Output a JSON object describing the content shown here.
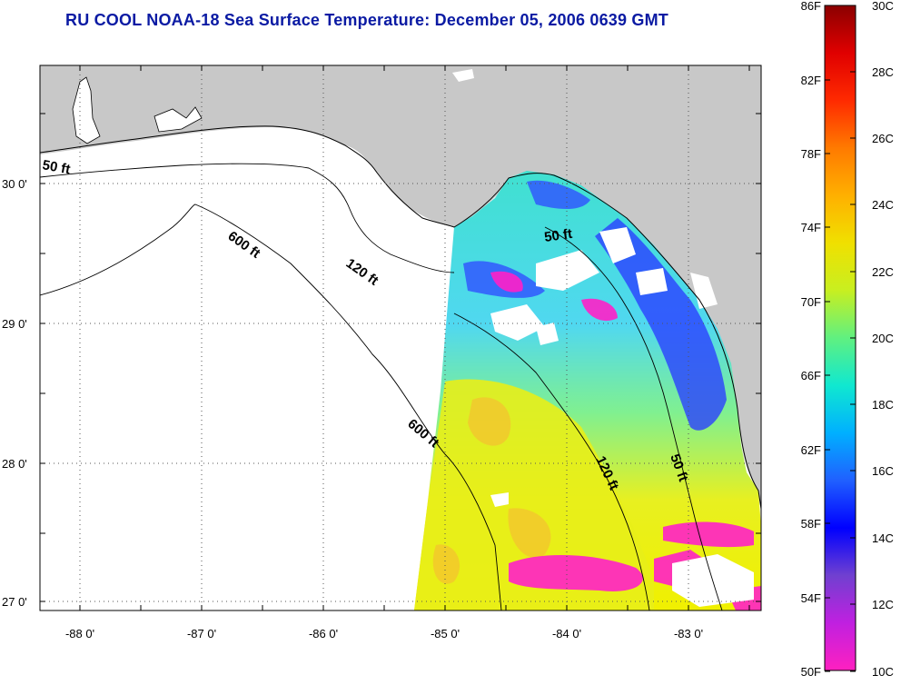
{
  "title": "RU COOL  NOAA-18  Sea Surface Temperature:  December 05, 2006 0639 GMT",
  "map": {
    "lon_ticks": [
      "-88 0'",
      "-87 0'",
      "-86 0'",
      "-85 0'",
      "-84 0'",
      "-83 0'"
    ],
    "lat_ticks": [
      "30 0'",
      "29 0'",
      "28 0'",
      "27 0'"
    ],
    "contour_labels": [
      "50 ft",
      "600 ft",
      "120 ft",
      "50 ft",
      "600 ft",
      "120 ft",
      "50 ft"
    ],
    "colors": {
      "land": "#c8c8c8",
      "ocean_nodata": "#ffffff",
      "coast": "#000000"
    }
  },
  "colorbar": {
    "f_labels": [
      "86F",
      "82F",
      "78F",
      "74F",
      "70F",
      "66F",
      "62F",
      "58F",
      "54F",
      "50F"
    ],
    "c_labels": [
      "30C",
      "28C",
      "26C",
      "24C",
      "22C",
      "20C",
      "18C",
      "16C",
      "14C",
      "12C",
      "10C"
    ],
    "gradient": [
      "#8b0000",
      "#e00000",
      "#ff2a00",
      "#ff7a00",
      "#ffb000",
      "#f0e000",
      "#c8ef20",
      "#60f080",
      "#10e8d0",
      "#00b0ff",
      "#2060ff",
      "#0000ff",
      "#7040d0",
      "#c020e0",
      "#ff20c0"
    ]
  }
}
